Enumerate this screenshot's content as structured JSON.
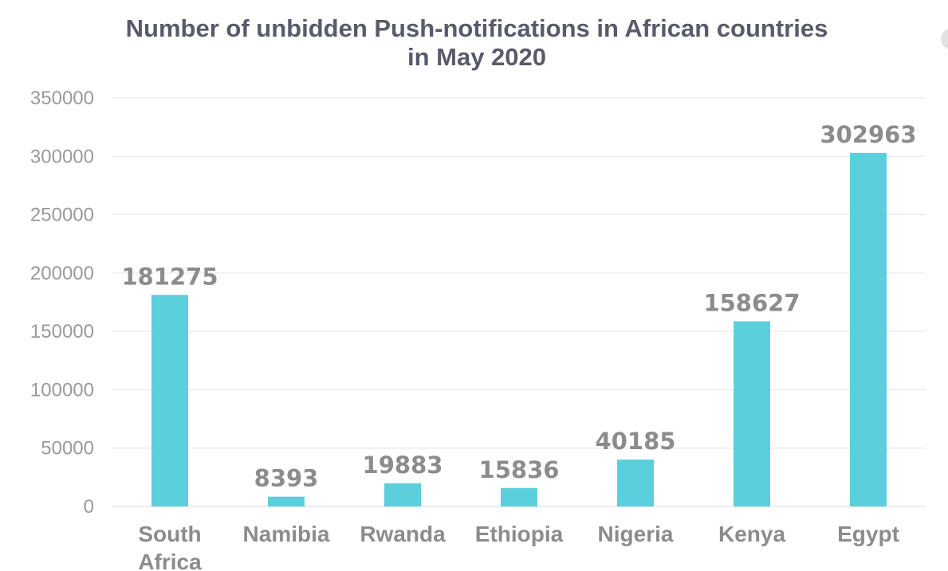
{
  "chart_data": {
    "type": "bar",
    "title": "Number of unbidden Push-notifications in African countries in May 2020",
    "title_lines": [
      "Number of unbidden Push-notifications in African countries",
      "in May 2020"
    ],
    "categories": [
      "South Africa",
      "Namibia",
      "Rwanda",
      "Ethiopia",
      "Nigeria",
      "Kenya",
      "Egypt"
    ],
    "category_lines": [
      [
        "South",
        "Africa"
      ],
      [
        "Namibia"
      ],
      [
        "Rwanda"
      ],
      [
        "Ethiopia"
      ],
      [
        "Nigeria"
      ],
      [
        "Kenya"
      ],
      [
        "Egypt"
      ]
    ],
    "values": [
      181275,
      8393,
      19883,
      15836,
      40185,
      158627,
      302963
    ],
    "data_labels": [
      "181275",
      "8393",
      "19883",
      "15836",
      "40185",
      "158627",
      "302963"
    ],
    "y_ticks": [
      "0",
      "50000",
      "100000",
      "150000",
      "200000",
      "250000",
      "300000",
      "350000"
    ],
    "ylim": [
      0,
      350000
    ],
    "xlabel": "",
    "ylabel": "",
    "grid": true,
    "legend": "none",
    "bar_color": "#5ccfdc",
    "grid_color": "#e6e6e6"
  },
  "corner_icon": "circle-icon"
}
